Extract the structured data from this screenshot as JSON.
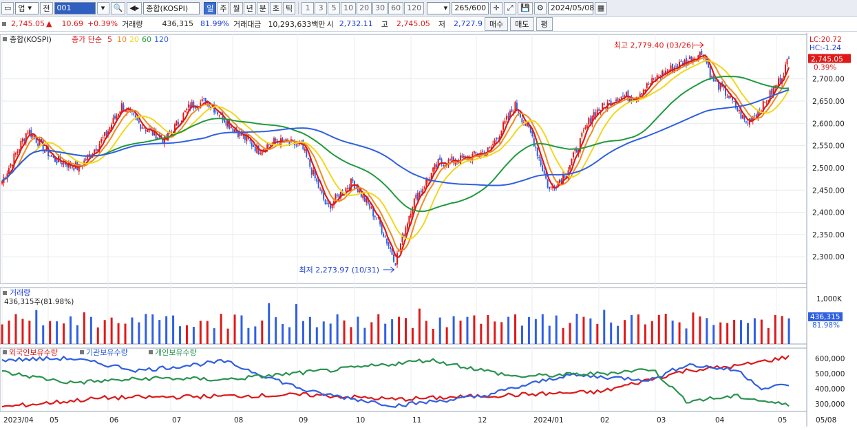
{
  "toolbar": {
    "market": "업",
    "prev": "전",
    "code": "001",
    "name": "종합(KOSPI)",
    "periods": [
      "일",
      "주",
      "월",
      "년",
      "분",
      "초",
      "틱"
    ],
    "active_period": "일",
    "intervals": [
      "1",
      "3",
      "5",
      "10",
      "20",
      "30",
      "60",
      "120"
    ],
    "count": "265/600",
    "date": "2024/05/08"
  },
  "quote": {
    "price": "2,745.05",
    "arrow": "▲",
    "change": "10.69",
    "pct": "+0.39%",
    "vol_label": "거래량",
    "vol": "436,315",
    "vol_pct": "81.99%",
    "amt_label": "거래대금",
    "amt": "10,293,633백만",
    "open_label": "시",
    "open": "2,732.11",
    "high_label": "고",
    "high": "2,745.05",
    "low_label": "저",
    "low": "2,727.9",
    "buy": "매수",
    "sell": "매도",
    "eval": "평"
  },
  "price_panel": {
    "name": "종합(KOSPI)",
    "ma_label": "종가 단순",
    "ma_periods": [
      "5",
      "10",
      "20",
      "60",
      "120"
    ],
    "ma_colors": [
      "#e01818",
      "#f08a1c",
      "#f2d71a",
      "#1f9a3c",
      "#2f5fe3"
    ],
    "max_label": "최고 2,779.40 (03/26)",
    "min_label": "최저 2,273.97 (10/31)",
    "lc": "LC:20.72",
    "hc": "HC:-1.24",
    "last_price": "2,745.05",
    "last_pct": "0.39%",
    "y_ticks": [
      "2,700.00",
      "2,650.00",
      "2,600.00",
      "2,550.00",
      "2,500.00",
      "2,450.00",
      "2,400.00",
      "2,350.00",
      "2,300.00"
    ]
  },
  "volume_panel": {
    "title": "거래량",
    "value_label": "436,315주(81.98%)",
    "y_tick": "1,000K",
    "last": "436,315",
    "last_pct": "81.98%"
  },
  "holding_panel": {
    "legend": [
      "외국인보유수량",
      "기관보유수량",
      "개인보유수량"
    ],
    "colors": [
      "#e01818",
      "#2f5fe3",
      "#2a9350"
    ],
    "y_ticks": [
      "600,000",
      "500,000",
      "400,000",
      "300,000"
    ]
  },
  "x_axis": [
    "2023/04",
    "05",
    "06",
    "07",
    "08",
    "09",
    "10",
    "11",
    "12",
    "2024/01",
    "02",
    "03",
    "04",
    "05",
    "05/08"
  ],
  "chart_data": {
    "type": "line",
    "ylim": [
      2240,
      2800
    ],
    "series_anchors": [
      {
        "name": "종합(KOSPI)",
        "points": [
          [
            0,
            2470
          ],
          [
            15,
            2585
          ],
          [
            30,
            2520
          ],
          [
            45,
            2500
          ],
          [
            60,
            2570
          ],
          [
            70,
            2640
          ],
          [
            80,
            2600
          ],
          [
            95,
            2560
          ],
          [
            110,
            2640
          ],
          [
            120,
            2650
          ],
          [
            135,
            2590
          ],
          [
            150,
            2540
          ],
          [
            160,
            2560
          ],
          [
            175,
            2550
          ],
          [
            190,
            2410
          ],
          [
            205,
            2470
          ],
          [
            220,
            2380
          ],
          [
            230,
            2290
          ],
          [
            240,
            2420
          ],
          [
            255,
            2510
          ],
          [
            270,
            2520
          ],
          [
            285,
            2540
          ],
          [
            300,
            2640
          ],
          [
            310,
            2570
          ],
          [
            320,
            2450
          ],
          [
            330,
            2490
          ],
          [
            345,
            2620
          ],
          [
            360,
            2660
          ],
          [
            370,
            2660
          ],
          [
            385,
            2710
          ],
          [
            400,
            2740
          ],
          [
            410,
            2760
          ],
          [
            415,
            2700
          ],
          [
            425,
            2660
          ],
          [
            435,
            2600
          ],
          [
            445,
            2640
          ],
          [
            455,
            2700
          ],
          [
            460,
            2745
          ]
        ]
      }
    ],
    "max": {
      "date": "03/26",
      "value": 2779.4
    },
    "min": {
      "date": "10/31",
      "value": 2273.97
    }
  }
}
